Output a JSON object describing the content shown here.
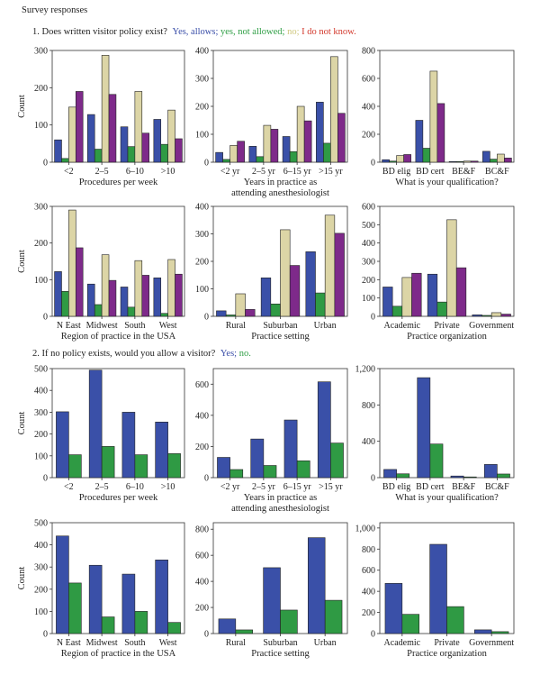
{
  "title": "Survey responses",
  "q1": {
    "text": "1. Does written visitor policy exist?",
    "legend": [
      {
        "label": "Yes, allows;",
        "color": "#3a4ea8"
      },
      {
        "label": "yes, not allowed;",
        "color": "#2e9e44"
      },
      {
        "label": "no;",
        "color": "#cfc77e"
      },
      {
        "label": "I do not know.",
        "color": "#d33a2e"
      }
    ]
  },
  "q2": {
    "text": "2. If no policy exists, would you allow a visitor?",
    "legend": [
      {
        "label": "Yes;",
        "color": "#3a4ea8"
      },
      {
        "label": "no.",
        "color": "#2e9e44"
      }
    ]
  },
  "series_colors": [
    "#3a50a8",
    "#2f9a44",
    "#dcd5a6",
    "#7e2a8a"
  ],
  "chart_data": [
    {
      "type": "bar",
      "ylabel": "Count",
      "xlabel": "Procedures per week",
      "ylim": [
        0,
        300
      ],
      "yticks": [
        "0",
        "100",
        "200",
        "300"
      ],
      "categories": [
        "<2",
        "2–5",
        "6–10",
        ">10"
      ],
      "series": [
        {
          "name": "Yes, allows",
          "values": [
            60,
            128,
            95,
            115
          ]
        },
        {
          "name": "yes, not allowed",
          "values": [
            10,
            35,
            42,
            48
          ]
        },
        {
          "name": "no",
          "values": [
            148,
            287,
            190,
            140
          ]
        },
        {
          "name": "I do not know",
          "values": [
            190,
            182,
            78,
            63
          ]
        }
      ]
    },
    {
      "type": "bar",
      "ylabel": "",
      "xlabel": "Years in practice as attending anesthesiologist",
      "ylim": [
        0,
        400
      ],
      "yticks": [
        "0",
        "100",
        "200",
        "300",
        "400"
      ],
      "categories": [
        "<2 yr",
        "2–5 yr",
        "6–15 yr",
        ">15 yr"
      ],
      "series": [
        {
          "name": "Yes, allows",
          "values": [
            35,
            57,
            92,
            215
          ]
        },
        {
          "name": "yes, not allowed",
          "values": [
            10,
            20,
            38,
            68
          ]
        },
        {
          "name": "no",
          "values": [
            60,
            132,
            200,
            378
          ]
        },
        {
          "name": "I do not know",
          "values": [
            75,
            118,
            148,
            175
          ]
        }
      ]
    },
    {
      "type": "bar",
      "ylabel": "",
      "xlabel": "What is your qualification?",
      "ylim": [
        0,
        800
      ],
      "yticks": [
        "0",
        "200",
        "400",
        "600",
        "800"
      ],
      "categories": [
        "BD elig",
        "BD cert",
        "BE&F",
        "BC&F"
      ],
      "series": [
        {
          "name": "Yes, allows",
          "values": [
            18,
            300,
            5,
            78
          ]
        },
        {
          "name": "yes, not allowed",
          "values": [
            8,
            100,
            5,
            22
          ]
        },
        {
          "name": "no",
          "values": [
            48,
            652,
            8,
            58
          ]
        },
        {
          "name": "I do not know",
          "values": [
            55,
            420,
            8,
            30
          ]
        }
      ]
    },
    {
      "type": "bar",
      "ylabel": "Count",
      "xlabel": "Region of practice in the USA",
      "ylim": [
        0,
        300
      ],
      "yticks": [
        "0",
        "100",
        "200",
        "300"
      ],
      "categories": [
        "N East",
        "Midwest",
        "South",
        "West"
      ],
      "series": [
        {
          "name": "Yes, allows",
          "values": [
            122,
            88,
            80,
            105
          ]
        },
        {
          "name": "yes, not allowed",
          "values": [
            68,
            32,
            25,
            8
          ]
        },
        {
          "name": "no",
          "values": [
            290,
            168,
            152,
            155
          ]
        },
        {
          "name": "I do not know",
          "values": [
            187,
            98,
            112,
            115
          ]
        }
      ]
    },
    {
      "type": "bar",
      "ylabel": "",
      "xlabel": "Practice setting",
      "ylim": [
        0,
        400
      ],
      "yticks": [
        "0",
        "100",
        "200",
        "300",
        "400"
      ],
      "categories": [
        "Rural",
        "Suburban",
        "Urban"
      ],
      "series": [
        {
          "name": "Yes, allows",
          "values": [
            20,
            140,
            235
          ]
        },
        {
          "name": "yes, not allowed",
          "values": [
            5,
            45,
            85
          ]
        },
        {
          "name": "no",
          "values": [
            82,
            315,
            368
          ]
        },
        {
          "name": "I do not know",
          "values": [
            25,
            185,
            302
          ]
        }
      ]
    },
    {
      "type": "bar",
      "ylabel": "",
      "xlabel": "Practice organization",
      "ylim": [
        0,
        600
      ],
      "yticks": [
        "0",
        "100",
        "200",
        "300",
        "400",
        "500",
        "600"
      ],
      "categories": [
        "Academic",
        "Private",
        "Government"
      ],
      "series": [
        {
          "name": "Yes, allows",
          "values": [
            160,
            230,
            8
          ]
        },
        {
          "name": "yes, not allowed",
          "values": [
            55,
            78,
            5
          ]
        },
        {
          "name": "no",
          "values": [
            212,
            527,
            20
          ]
        },
        {
          "name": "I do not know",
          "values": [
            235,
            265,
            12
          ]
        }
      ]
    },
    {
      "type": "bar",
      "ylabel": "Count",
      "xlabel": "Procedures per week",
      "ylim": [
        0,
        500
      ],
      "yticks": [
        "0",
        "100",
        "200",
        "300",
        "400",
        "500"
      ],
      "categories": [
        "<2",
        "2–5",
        "6–10",
        ">10"
      ],
      "series": [
        {
          "name": "Yes",
          "values": [
            302,
            493,
            300,
            255
          ]
        },
        {
          "name": "no",
          "values": [
            105,
            143,
            105,
            110
          ]
        }
      ]
    },
    {
      "type": "bar",
      "ylabel": "",
      "xlabel": "Years in practice as attending anesthesiologist",
      "ylim": [
        0,
        700
      ],
      "yticks": [
        "0",
        "200",
        "400",
        "600"
      ],
      "categories": [
        "<2 yr",
        "2–5 yr",
        "6–15 yr",
        ">15 yr"
      ],
      "series": [
        {
          "name": "Yes",
          "values": [
            130,
            248,
            370,
            615
          ]
        },
        {
          "name": "no",
          "values": [
            52,
            78,
            108,
            222
          ]
        }
      ]
    },
    {
      "type": "bar",
      "ylabel": "",
      "xlabel": "What is your qualification?",
      "ylim": [
        0,
        1200
      ],
      "yticks": [
        "0",
        "400",
        "800",
        "1,200"
      ],
      "categories": [
        "BD elig",
        "BD cert",
        "BE&F",
        "BC&F"
      ],
      "series": [
        {
          "name": "Yes",
          "values": [
            90,
            1100,
            18,
            145
          ]
        },
        {
          "name": "no",
          "values": [
            42,
            370,
            8,
            40
          ]
        }
      ]
    },
    {
      "type": "bar",
      "ylabel": "Count",
      "xlabel": "Region of practice in the USA",
      "ylim": [
        0,
        500
      ],
      "yticks": [
        "0",
        "100",
        "200",
        "300",
        "400",
        "500"
      ],
      "categories": [
        "N East",
        "Midwest",
        "South",
        "West"
      ],
      "series": [
        {
          "name": "Yes",
          "values": [
            440,
            308,
            268,
            332
          ]
        },
        {
          "name": "no",
          "values": [
            228,
            75,
            100,
            50
          ]
        }
      ]
    },
    {
      "type": "bar",
      "ylabel": "",
      "xlabel": "Practice setting",
      "ylim": [
        0,
        850
      ],
      "yticks": [
        "0",
        "200",
        "400",
        "600",
        "800"
      ],
      "categories": [
        "Rural",
        "Suburban",
        "Urban"
      ],
      "series": [
        {
          "name": "Yes",
          "values": [
            112,
            505,
            735
          ]
        },
        {
          "name": "no",
          "values": [
            28,
            180,
            255
          ]
        }
      ]
    },
    {
      "type": "bar",
      "ylabel": "",
      "xlabel": "Practice organization",
      "ylim": [
        0,
        1050
      ],
      "yticks": [
        "0",
        "200",
        "400",
        "600",
        "800",
        "1,000"
      ],
      "categories": [
        "Academic",
        "Private",
        "Government"
      ],
      "series": [
        {
          "name": "Yes",
          "values": [
            475,
            845,
            35
          ]
        },
        {
          "name": "no",
          "values": [
            182,
            255,
            18
          ]
        }
      ]
    }
  ]
}
